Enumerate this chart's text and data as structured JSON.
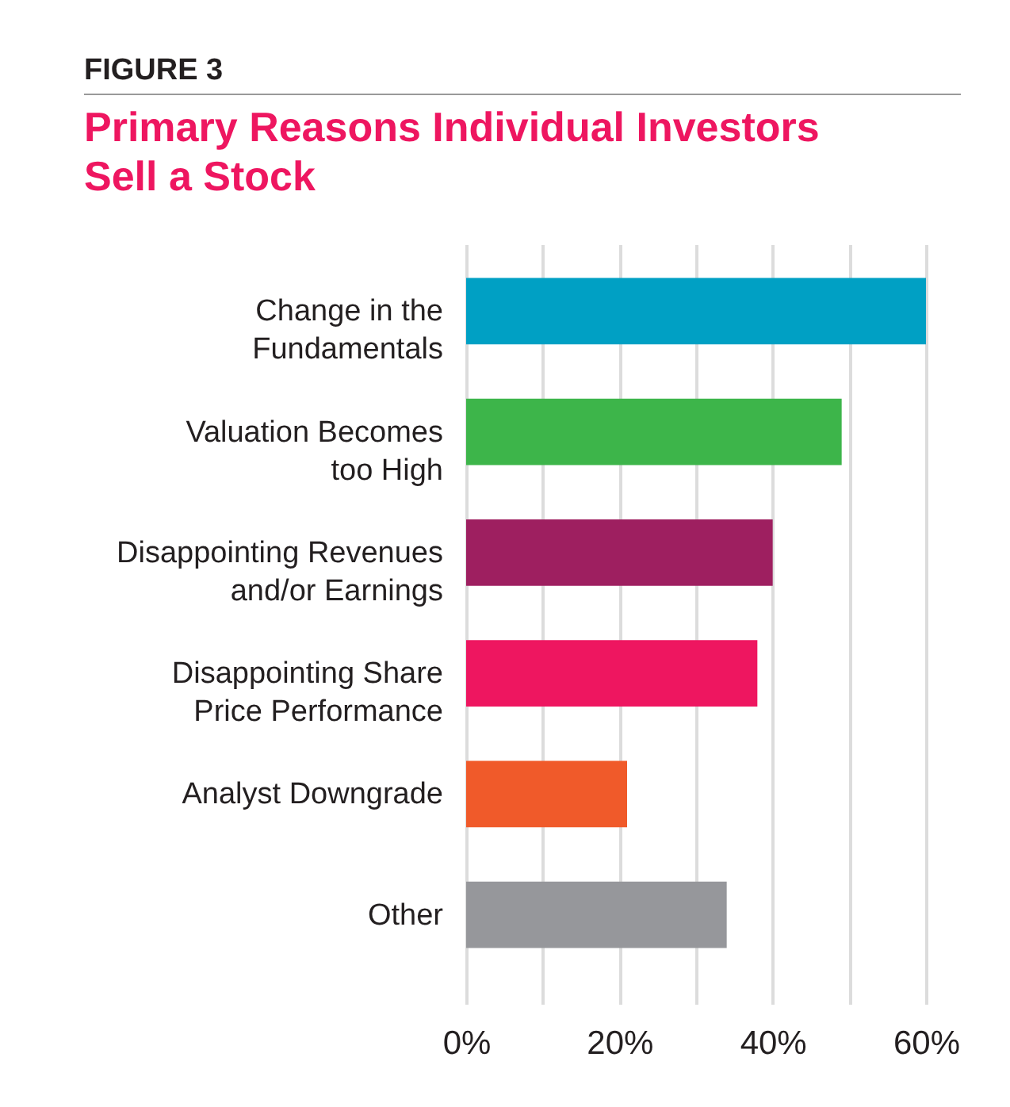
{
  "chart_data": {
    "type": "bar",
    "orientation": "horizontal",
    "title": "Primary Reasons Individual Investors Sell a Stock",
    "annotations": [
      "FIGURE 3"
    ],
    "categories": [
      "Change in the\nFundamentals",
      "Valuation Becomes\ntoo High",
      "Disappointing Revenues\nand/or Earnings",
      "Disappointing Share\nPrice Performance",
      "Analyst Downgrade",
      "Other"
    ],
    "values": [
      60,
      49,
      40,
      38,
      21,
      34
    ],
    "colors": [
      "#00a0c4",
      "#3db54a",
      "#9e1f60",
      "#ee1660",
      "#f05a2a",
      "#96979b"
    ],
    "xlim": [
      0,
      60
    ],
    "xticks": [
      {
        "value": 0,
        "label": "0%"
      },
      {
        "value": 10,
        "label": null
      },
      {
        "value": 20,
        "label": "20%"
      },
      {
        "value": 30,
        "label": null
      },
      {
        "value": 40,
        "label": "40%"
      },
      {
        "value": 50,
        "label": null
      },
      {
        "value": 60,
        "label": "60%"
      }
    ],
    "grid": "x",
    "legend": false
  }
}
